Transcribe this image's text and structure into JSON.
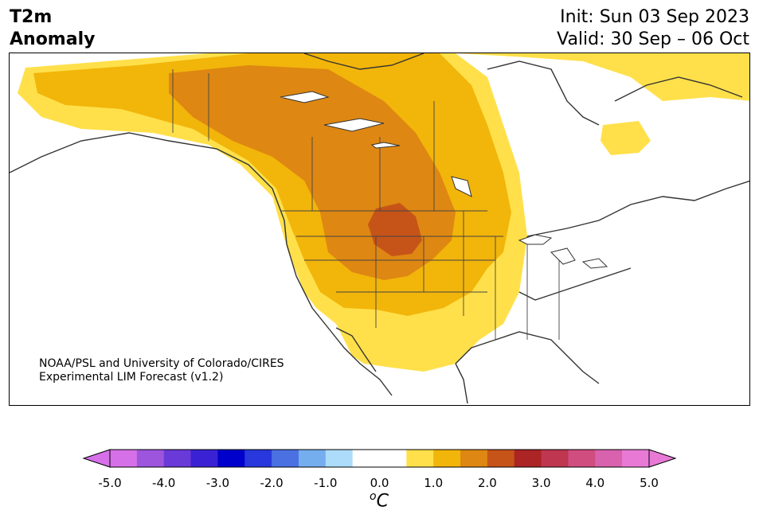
{
  "title": {
    "line1": "T2m",
    "line2": "Anomaly"
  },
  "dates": {
    "init": "Init: Sun 03 Sep 2023",
    "valid": "Valid: 30 Sep – 06 Oct"
  },
  "credit": {
    "line1": "NOAA/PSL and University of Colorado/CIRES",
    "line2": "Experimental LIM Forecast (v1.2)"
  },
  "colorbar": {
    "colors": [
      "#d670e8",
      "#9d55de",
      "#6a3ad8",
      "#3a22d4",
      "#0000cc",
      "#2838dc",
      "#4a70e2",
      "#74aeee",
      "#acdcfa",
      "#ffffff",
      "#ffffff",
      "#ffe04a",
      "#f2b50a",
      "#de8712",
      "#c65418",
      "#ac2424",
      "#bf3650",
      "#d04d80",
      "#d862ad",
      "#e87ad6"
    ],
    "extend_min_color": "#d670e8",
    "extend_max_color": "#e87ad6",
    "tick_labels": [
      "-5.0",
      "-4.0",
      "-3.0",
      "-2.0",
      "-1.0",
      "0.0",
      "1.0",
      "2.0",
      "3.0",
      "4.0",
      "5.0"
    ],
    "units_base": "C",
    "units_sup": "o"
  },
  "anomaly_fills": {
    "plus_0_5_to_1": "#ffe04a",
    "plus_1_to_1_5": "#f2b50a",
    "plus_1_5_to_2": "#de8712",
    "plus_2_to_2_5": "#c65418"
  }
}
